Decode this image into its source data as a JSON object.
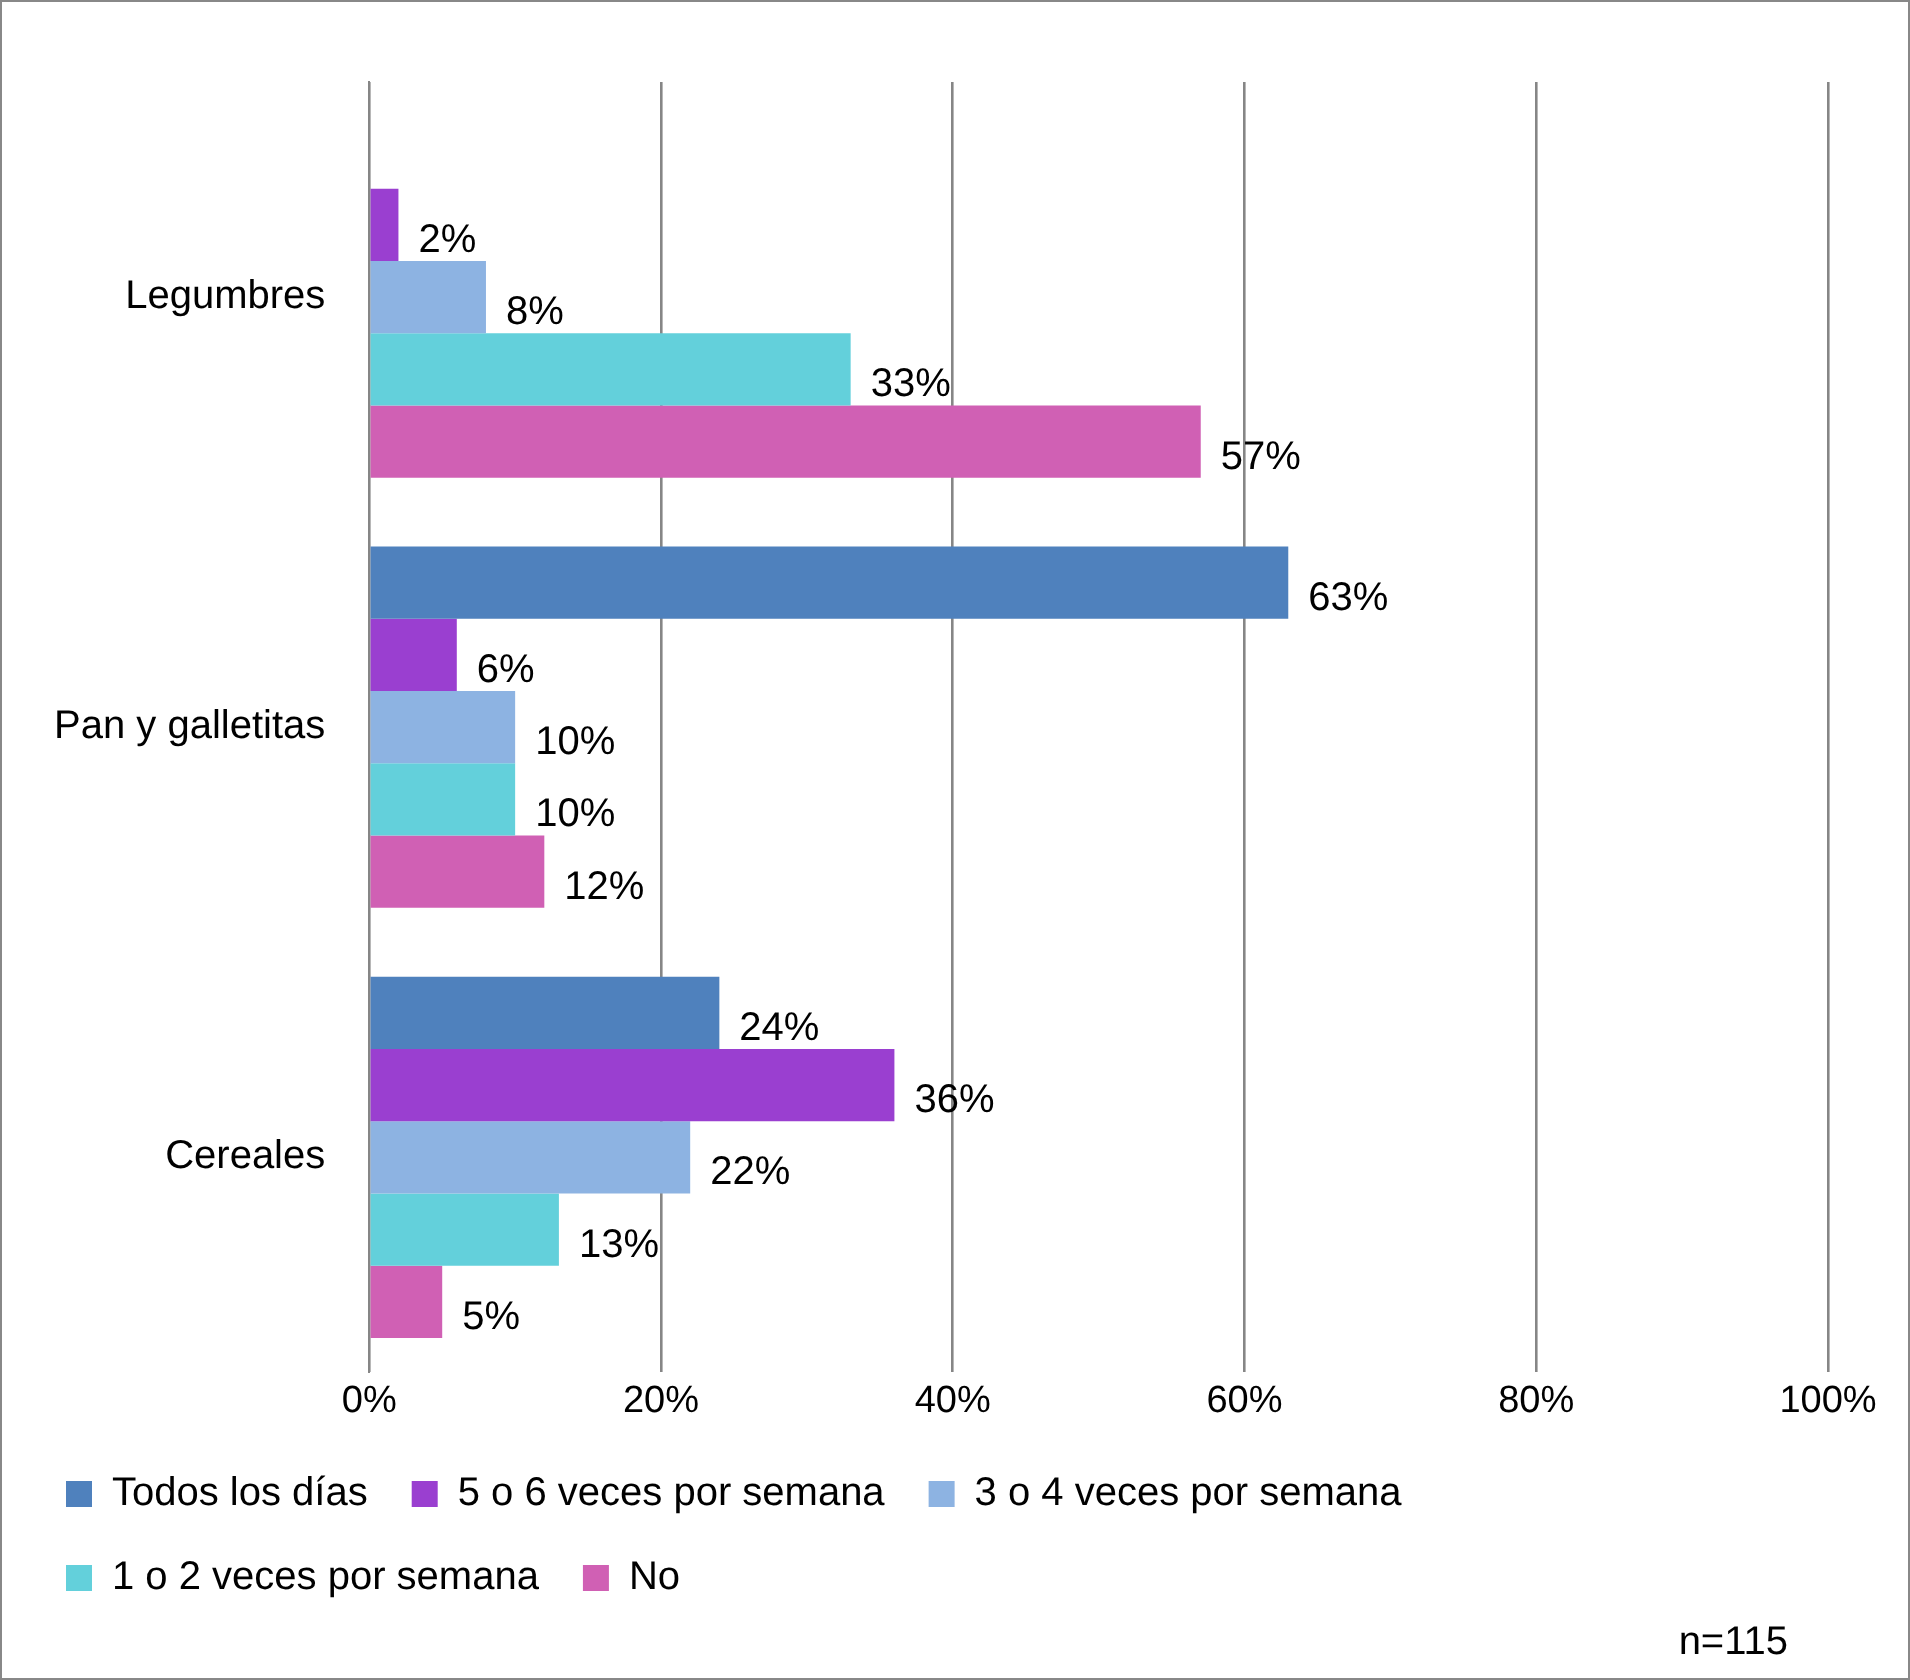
{
  "chart_data": {
    "type": "bar",
    "orientation": "horizontal",
    "categories": [
      "Legumbres",
      "Pan y galletitas",
      "Cereales"
    ],
    "series": [
      {
        "name": "Todos los días",
        "color": "#4f81bd",
        "values": [
          null,
          63,
          24
        ],
        "value_labels": [
          null,
          "63%",
          "24%"
        ]
      },
      {
        "name": "5 o 6 veces por semana",
        "color": "#9a3fd0",
        "values": [
          2,
          6,
          36
        ],
        "value_labels": [
          "2%",
          "6%",
          "36%"
        ]
      },
      {
        "name": "3 o 4 veces por semana",
        "color": "#8db3e2",
        "values": [
          8,
          10,
          22
        ],
        "value_labels": [
          "8%",
          "10%",
          "22%"
        ]
      },
      {
        "name": "1 o 2 veces por semana",
        "color": "#63d0db",
        "values": [
          33,
          10,
          13
        ],
        "value_labels": [
          "33%",
          "10%",
          "13%"
        ]
      },
      {
        "name": "No",
        "color": "#d060b4",
        "values": [
          57,
          12,
          5
        ],
        "value_labels": [
          "57%",
          "12%",
          "5%"
        ]
      }
    ],
    "xlim": [
      0,
      100
    ],
    "xticks": [
      {
        "value": 0,
        "label": "0%"
      },
      {
        "value": 20,
        "label": "20%"
      },
      {
        "value": 40,
        "label": "40%"
      },
      {
        "value": 60,
        "label": "60%"
      },
      {
        "value": 80,
        "label": "80%"
      },
      {
        "value": 100,
        "label": "100%"
      }
    ],
    "grid": "x",
    "legend": "bottom",
    "annotations": [
      "n=115"
    ]
  }
}
